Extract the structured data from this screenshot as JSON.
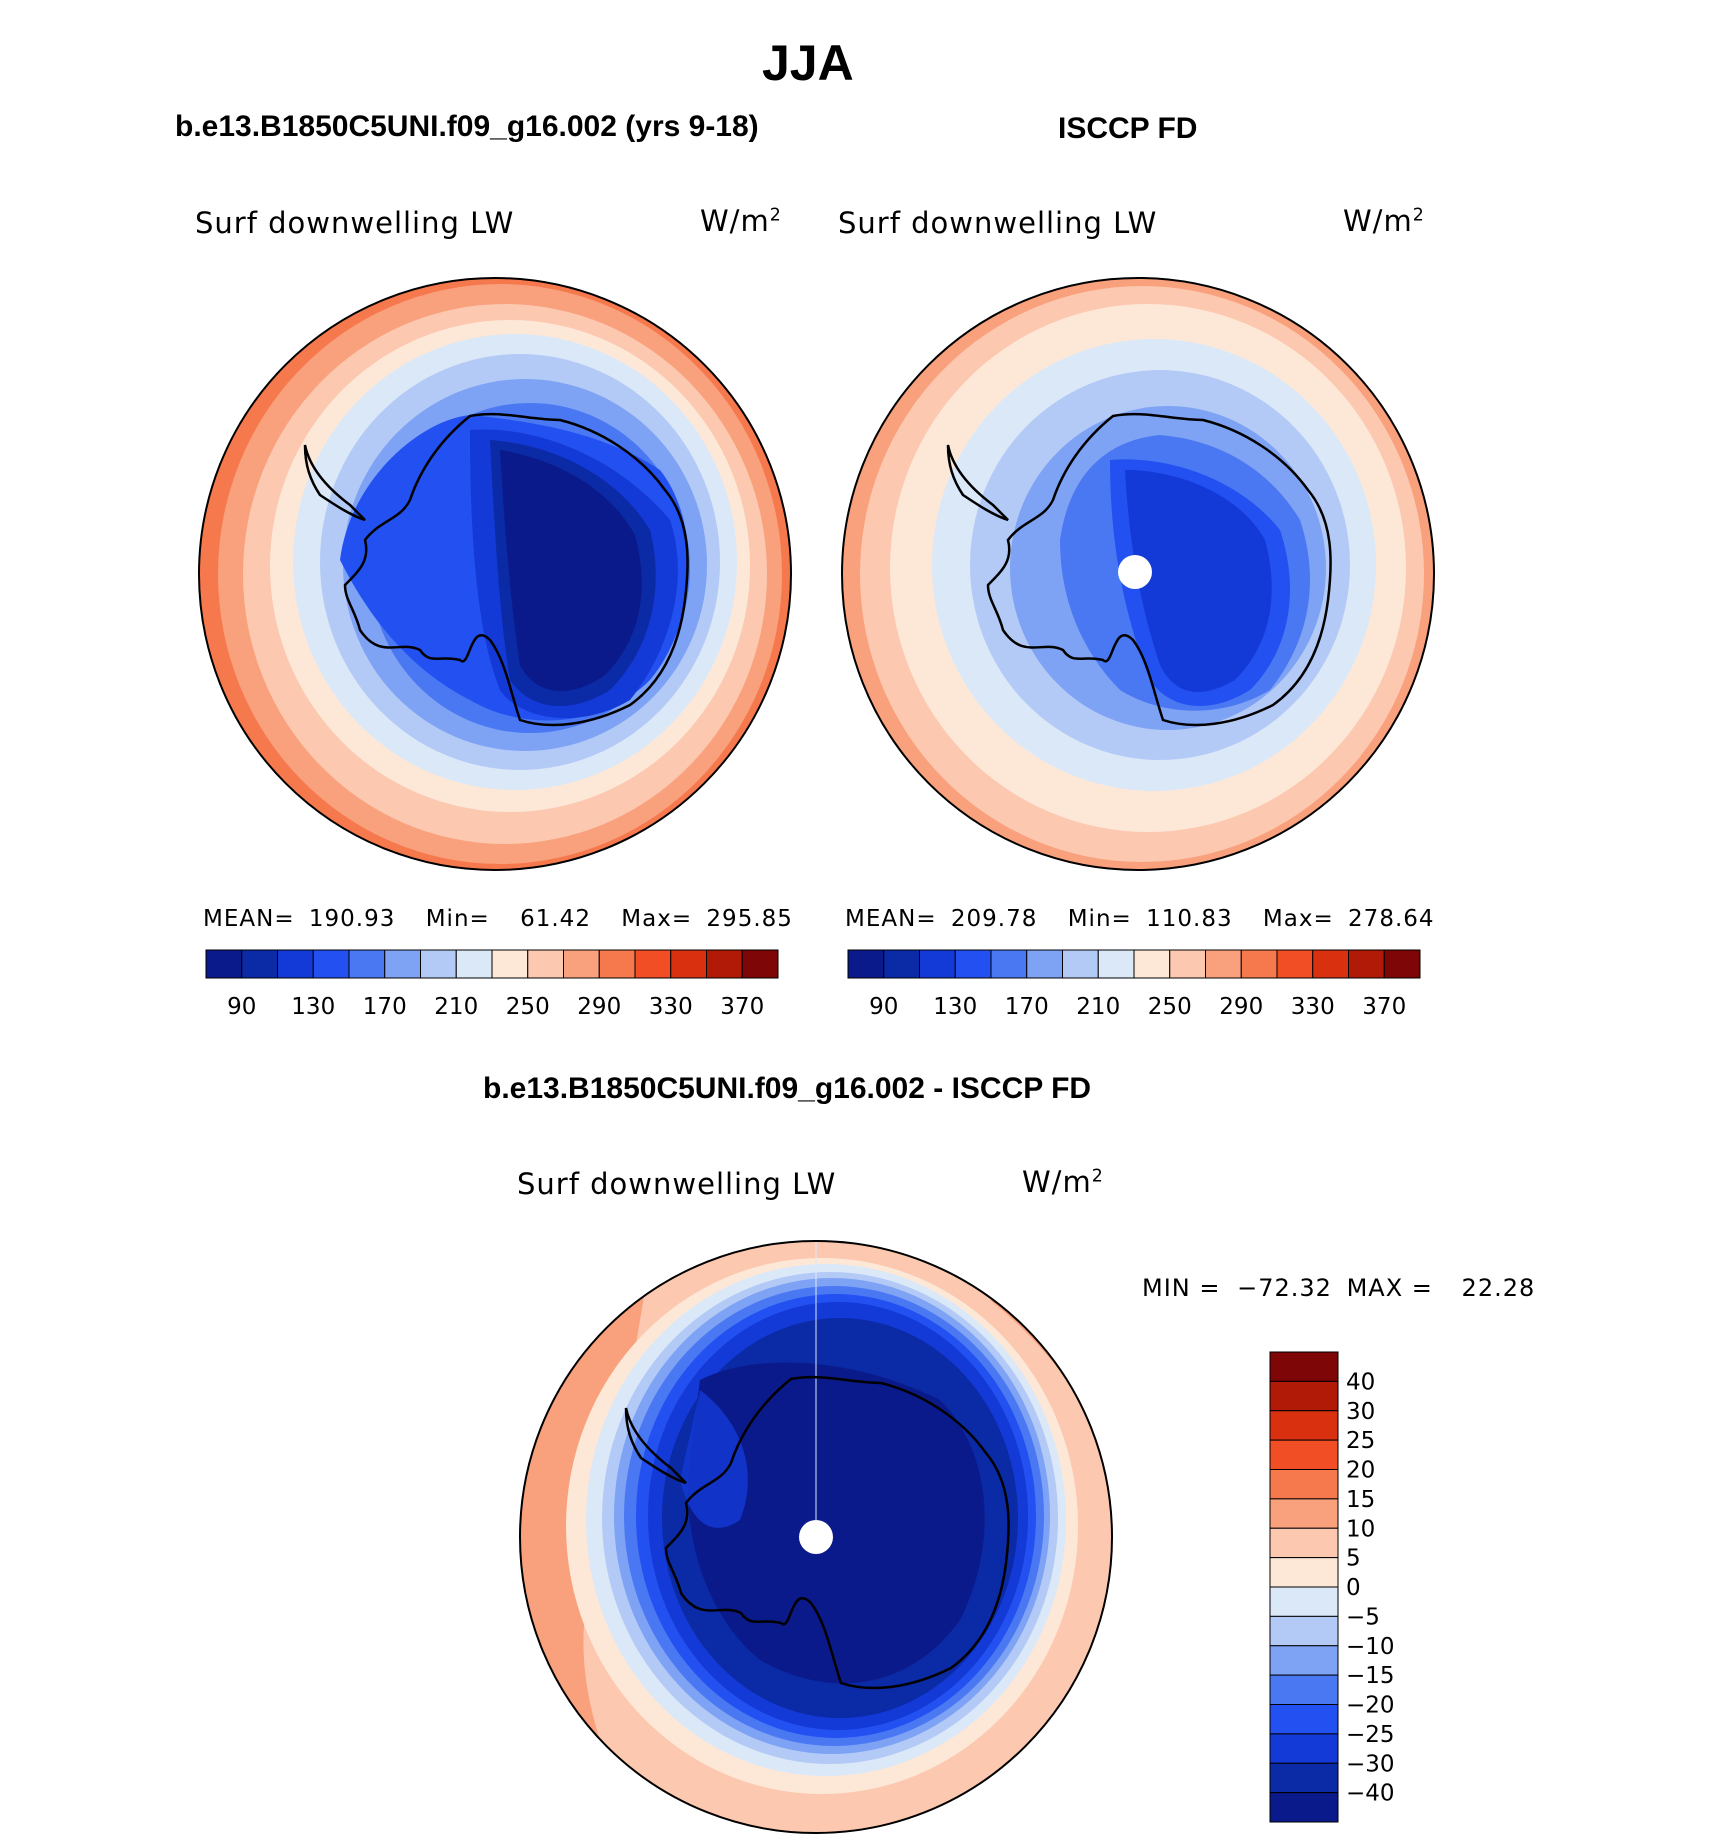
{
  "figure": {
    "title": "JJA",
    "unit_base": "W/m",
    "unit_power": "2"
  },
  "panels": {
    "model": {
      "header": "b.e13.B1850C5UNI.f09_g16.002 (yrs 9-18)",
      "variable": "Surf downwelling LW",
      "stats": {
        "mean_label": "MEAN=",
        "mean": "190.93",
        "min_label": "Min=",
        "min": "61.42",
        "max_label": "Max=",
        "max": "295.85"
      }
    },
    "obs": {
      "header": "ISCCP FD",
      "variable": "Surf downwelling LW",
      "stats": {
        "mean_label": "MEAN=",
        "mean": "209.78",
        "min_label": "Min=",
        "min": "110.83",
        "max_label": "Max=",
        "max": "278.64"
      }
    },
    "diff": {
      "header": "b.e13.B1850C5UNI.f09_g16.002 - ISCCP FD",
      "variable": "Surf downwelling LW",
      "min_label": "MIN =",
      "min": "−72.32",
      "max_label": "MAX =",
      "max": "22.28"
    }
  },
  "colorbars": {
    "abs_colors": [
      "#0a1a8a",
      "#0b2aa6",
      "#1339d6",
      "#2350f0",
      "#4a78f2",
      "#7ea2f4",
      "#b4caf6",
      "#dbe8f8",
      "#fde8d8",
      "#fcc8b0",
      "#f9a07c",
      "#f6794e",
      "#f24e26",
      "#d9300f",
      "#b11a06",
      "#7e0606"
    ],
    "abs_labels": [
      "90",
      "130",
      "170",
      "210",
      "250",
      "290",
      "330",
      "370"
    ],
    "diff_colors": [
      "#0a1a8a",
      "#0b2aa6",
      "#1339d6",
      "#2350f0",
      "#4a78f2",
      "#7ea2f4",
      "#b4caf6",
      "#dbe8f8",
      "#fde8d8",
      "#fcc8b0",
      "#f9a07c",
      "#f6794e",
      "#f24e26",
      "#d9300f",
      "#b11a06",
      "#7e0606"
    ],
    "diff_labels": [
      "40",
      "30",
      "25",
      "20",
      "15",
      "10",
      "5",
      "0",
      "−5",
      "−10",
      "−15",
      "−20",
      "−25",
      "−30",
      "−40"
    ]
  }
}
